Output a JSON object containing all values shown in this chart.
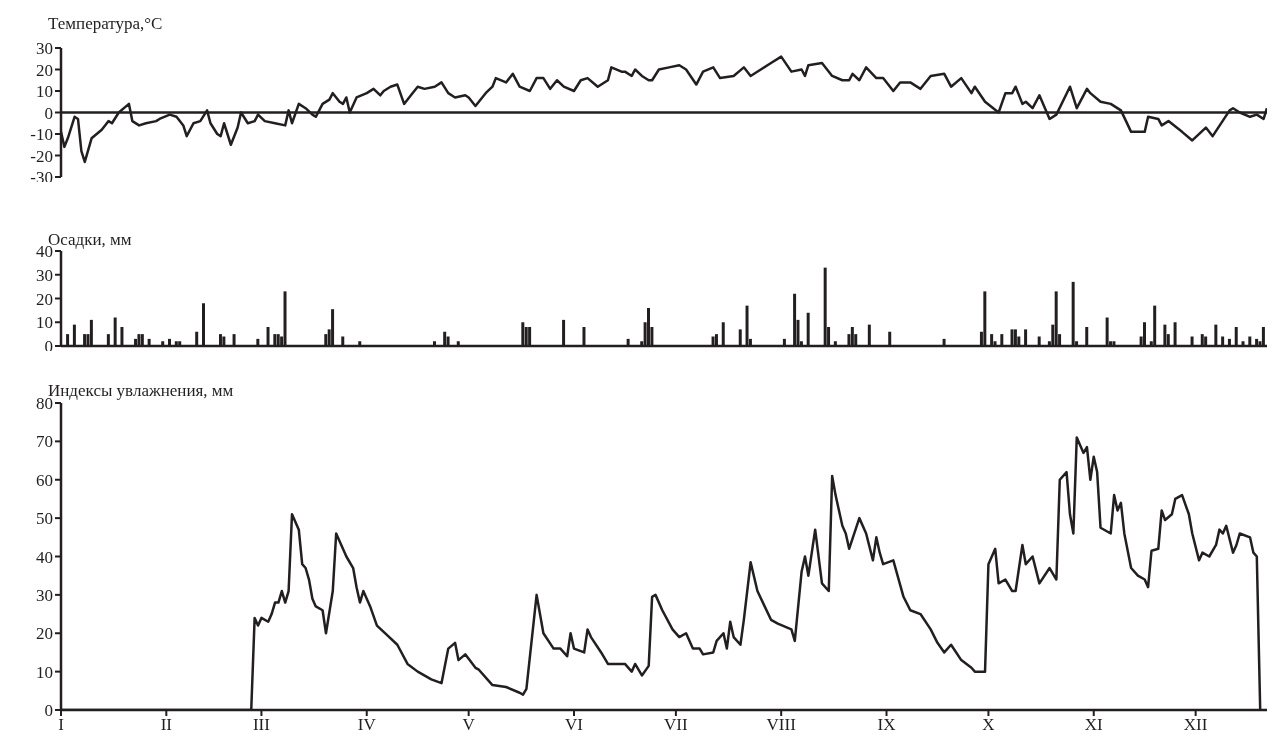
{
  "chart_data": [
    {
      "type": "line",
      "ylabel": "Температура,°C",
      "color": "#231f20",
      "ylim": [
        -30,
        30
      ],
      "yticks": [
        -30,
        -20,
        -10,
        0,
        10,
        20,
        30
      ],
      "tick_labels": "y",
      "categories": [
        null,
        null,
        null,
        null,
        null,
        null,
        null,
        null,
        null,
        null,
        null,
        null,
        null,
        null,
        null,
        null,
        null,
        null,
        null,
        null,
        null,
        null,
        null,
        null,
        null,
        null,
        null,
        null,
        null,
        null,
        null,
        null,
        null,
        null,
        null,
        null,
        null,
        null,
        null,
        null,
        null,
        null,
        null,
        null,
        null,
        null,
        null,
        null,
        null,
        null,
        null,
        null,
        null,
        null,
        null,
        null,
        null,
        null,
        null,
        null,
        null,
        null,
        null,
        null,
        null,
        null,
        null,
        null,
        null,
        null,
        null,
        null,
        null,
        null,
        null,
        null,
        null,
        null,
        null,
        null,
        null,
        null,
        null,
        null,
        null,
        null,
        null,
        null,
        null,
        null,
        null,
        null,
        null,
        null,
        null,
        null,
        null,
        null,
        null,
        null,
        null,
        null,
        null,
        null,
        null,
        null,
        null,
        null,
        null,
        null,
        null,
        null,
        null,
        null,
        null,
        null,
        null,
        null,
        null,
        null,
        null,
        null,
        null,
        null,
        null,
        null,
        null,
        null,
        null,
        null,
        null,
        null,
        null,
        null,
        null,
        null,
        null,
        null,
        null,
        null,
        null,
        null,
        null,
        null,
        null,
        null,
        null,
        null,
        null,
        null,
        null,
        null,
        null,
        null,
        null,
        null,
        null,
        null,
        null,
        null,
        null,
        null,
        null,
        null,
        null,
        null,
        null,
        null,
        null,
        null,
        null,
        null,
        null,
        null,
        null,
        null,
        null,
        null,
        null,
        null,
        null,
        null,
        null,
        null,
        null,
        null,
        null,
        null,
        null,
        null,
        null,
        null,
        null,
        null,
        null,
        null,
        null,
        null,
        null,
        null,
        null,
        null,
        null,
        null,
        null,
        null,
        null,
        null,
        null,
        null,
        null,
        null,
        null,
        null,
        null,
        null,
        null,
        null,
        null,
        null,
        null,
        null,
        null,
        null,
        null,
        null,
        null,
        null,
        null,
        null,
        null,
        null,
        null,
        null,
        null,
        null,
        null,
        null,
        null,
        null,
        null,
        null,
        null,
        null,
        null,
        null,
        null,
        null,
        null,
        null,
        null,
        null,
        null,
        null,
        null,
        null,
        null,
        null,
        null,
        null,
        null,
        null,
        null,
        null,
        null,
        null,
        null,
        null,
        null,
        null,
        null,
        null,
        null,
        null,
        null,
        null,
        null,
        null,
        null,
        null,
        null,
        null,
        null,
        null,
        null,
        null,
        null,
        null,
        null,
        null,
        null,
        null,
        null,
        null,
        null,
        null,
        null,
        null,
        null,
        null,
        null,
        null,
        null,
        null,
        null,
        null,
        null,
        null,
        null,
        null,
        null,
        null,
        null,
        null,
        null,
        null,
        null,
        null,
        null,
        null,
        null,
        null,
        null,
        null,
        null,
        null,
        null,
        null,
        null,
        null,
        null,
        null,
        null,
        null,
        null,
        null,
        null,
        null,
        null,
        null,
        null,
        null,
        null,
        null,
        null,
        null,
        null,
        null,
        null,
        null,
        null,
        null,
        null,
        null,
        null,
        null
      ],
      "values": [
        -9,
        -16,
        -12,
        null,
        -2,
        -3,
        -18,
        -23,
        null,
        -12,
        null,
        null,
        -8,
        null,
        -4,
        -5,
        null,
        0,
        null,
        null,
        4,
        -4,
        null,
        -6,
        null,
        -5,
        null,
        null,
        -4,
        -3,
        null,
        null,
        -1,
        null,
        -2,
        null,
        -6,
        -11,
        null,
        -5,
        null,
        -4,
        null,
        1,
        -5,
        null,
        -10,
        -11,
        -5,
        null,
        -15,
        null,
        -7,
        0,
        null,
        -5,
        null,
        -4,
        -1,
        null,
        -4,
        null,
        null,
        -5,
        null,
        null,
        -6,
        1,
        -5,
        null,
        4,
        null,
        2,
        null,
        -1,
        -2,
        null,
        4,
        null,
        6,
        9,
        null,
        5,
        4,
        7,
        0,
        null,
        7,
        null,
        null,
        9,
        null,
        11,
        null,
        8,
        10,
        null,
        12,
        null,
        13,
        null,
        4,
        null,
        8,
        null,
        12,
        null,
        11,
        null,
        null,
        12,
        null,
        14,
        null,
        9,
        null,
        7,
        null,
        null,
        8,
        7,
        null,
        3,
        5,
        null,
        9,
        null,
        12,
        16,
        null,
        null,
        14,
        null,
        18,
        null,
        12,
        null,
        null,
        10,
        null,
        16,
        null,
        16,
        null,
        11,
        null,
        15,
        null,
        12,
        null,
        null,
        10,
        null,
        15,
        null,
        16,
        null,
        null,
        12,
        null,
        null,
        15,
        21,
        null,
        null,
        19,
        19,
        null,
        17,
        20,
        null,
        17,
        null,
        15,
        15,
        null,
        20,
        null,
        null,
        21,
        null,
        null,
        22,
        null,
        20,
        null,
        null,
        13,
        null,
        19,
        null,
        null,
        21,
        null,
        16,
        null,
        null,
        null,
        17,
        null,
        null,
        21,
        null,
        17,
        null,
        null,
        20,
        null,
        null,
        23,
        null,
        null,
        26,
        null,
        null,
        19,
        null,
        null,
        20,
        17,
        22,
        null,
        null,
        null,
        23,
        null,
        null,
        17,
        null,
        null,
        15,
        null,
        15,
        18,
        null,
        15,
        null,
        21,
        null,
        null,
        16,
        null,
        16,
        null,
        null,
        10,
        null,
        14,
        null,
        null,
        14,
        null,
        null,
        11,
        null,
        null,
        17,
        null,
        null,
        null,
        18,
        null,
        12,
        null,
        null,
        16,
        null,
        null,
        9,
        12,
        null,
        null,
        5,
        null,
        null,
        null,
        0,
        null,
        9,
        null,
        9,
        12,
        null,
        4,
        5,
        null,
        2,
        null,
        8,
        null,
        null,
        -3,
        null,
        -1,
        null,
        null,
        null,
        12,
        null,
        2,
        null,
        null,
        11,
        9,
        null,
        null,
        5,
        null,
        null,
        4,
        null,
        null,
        1,
        null,
        null,
        -9,
        null,
        -9,
        null,
        -9,
        -2,
        null,
        null,
        -3,
        -6,
        null,
        -4,
        null,
        null,
        null,
        -9,
        null,
        null,
        -13,
        null,
        null,
        null,
        -7,
        null,
        -11,
        null,
        null,
        null,
        null,
        1,
        2,
        null,
        0,
        null,
        null,
        -2,
        null,
        -1,
        null,
        -3,
        2
      ]
    },
    {
      "type": "bar",
      "ylabel": "Осадки, мм",
      "color": "#231f20",
      "ylim": [
        0,
        40
      ],
      "yticks": [
        0,
        10,
        20,
        30,
        40
      ],
      "tick_labels": "y",
      "categories": [
        null,
        null,
        null,
        null,
        null,
        null,
        null,
        null,
        null,
        null,
        null,
        null,
        null,
        null,
        null,
        null,
        null,
        null,
        null,
        null,
        null,
        null,
        null,
        null,
        null,
        null,
        null,
        null,
        null,
        null,
        null,
        null,
        null,
        null,
        null,
        null,
        null,
        null,
        null,
        null,
        null,
        null,
        null,
        null,
        null,
        null,
        null,
        null,
        null,
        null,
        null,
        null,
        null,
        null,
        null,
        null,
        null,
        null,
        null,
        null,
        null,
        null,
        null,
        null,
        null,
        null,
        null,
        null,
        null,
        null,
        null,
        null,
        null,
        null,
        null,
        null,
        null,
        null,
        null,
        null,
        null,
        null,
        null,
        null,
        null,
        null,
        null,
        null,
        null,
        null,
        null,
        null,
        null,
        null,
        null,
        null,
        null,
        null,
        null,
        null,
        null,
        null,
        null,
        null,
        null,
        null,
        null,
        null,
        null,
        null,
        null,
        null,
        null,
        null,
        null,
        null,
        null,
        null,
        null,
        null,
        null,
        null,
        null,
        null,
        null,
        null,
        null,
        null,
        null,
        null,
        null,
        null,
        null,
        null,
        null,
        null,
        null,
        null,
        null,
        null,
        null,
        null,
        null,
        null,
        null,
        null,
        null,
        null,
        null,
        null,
        null,
        null,
        null,
        null,
        null,
        null,
        null,
        null,
        null,
        null,
        null,
        null,
        null,
        null,
        null,
        null,
        null,
        null,
        null,
        null,
        null,
        null,
        null,
        null,
        null,
        null,
        null,
        null,
        null,
        null,
        null,
        null,
        null,
        null,
        null,
        null,
        null,
        null,
        null,
        null,
        null,
        null,
        null,
        null,
        null,
        null,
        null,
        null,
        null,
        null,
        null,
        null,
        null,
        null,
        null,
        null,
        null,
        null,
        null,
        null,
        null,
        null,
        null,
        null,
        null,
        null,
        null,
        null,
        null,
        null,
        null,
        null,
        null,
        null,
        null,
        null,
        null,
        null,
        null,
        null,
        null,
        null,
        null,
        null,
        null,
        null,
        null,
        null,
        null,
        null,
        null,
        null,
        null,
        null,
        null,
        null,
        null,
        null,
        null,
        null,
        null,
        null,
        null,
        null,
        null,
        null,
        null,
        null,
        null,
        null,
        null,
        null,
        null,
        null,
        null,
        null,
        null,
        null,
        null,
        null,
        null,
        null,
        null,
        null,
        null,
        null,
        null,
        null,
        null,
        null,
        null,
        null,
        null,
        null,
        null,
        null,
        null,
        null,
        null,
        null,
        null,
        null,
        null,
        null,
        null,
        null,
        null,
        null,
        null,
        null,
        null,
        null,
        null,
        null,
        null,
        null,
        null,
        null,
        null,
        null,
        null,
        null,
        null,
        null,
        null,
        null,
        null,
        null,
        null,
        null,
        null,
        null,
        null,
        null,
        null,
        null,
        null,
        null,
        null,
        null,
        null,
        null,
        null,
        null,
        null,
        null,
        null,
        null,
        null,
        null,
        null,
        null,
        null,
        null,
        null,
        null,
        null,
        null,
        null,
        null,
        null,
        null,
        null,
        null,
        null,
        null
      ],
      "values": [
        null,
        null,
        5,
        null,
        9,
        null,
        null,
        5,
        5,
        11,
        null,
        null,
        null,
        null,
        5,
        null,
        12,
        null,
        8,
        null,
        null,
        null,
        3,
        5,
        5,
        null,
        3,
        null,
        null,
        null,
        2,
        null,
        3,
        null,
        2,
        2,
        null,
        null,
        null,
        null,
        6,
        null,
        18,
        null,
        null,
        null,
        null,
        5,
        4,
        null,
        null,
        5,
        null,
        null,
        null,
        null,
        null,
        null,
        3,
        null,
        null,
        8,
        null,
        5,
        5,
        4,
        23,
        null,
        null,
        null,
        null,
        null,
        null,
        null,
        null,
        null,
        null,
        null,
        5,
        7,
        15.5,
        null,
        null,
        4,
        null,
        null,
        null,
        null,
        2,
        null,
        null,
        null,
        null,
        null,
        null,
        null,
        null,
        null,
        null,
        null,
        null,
        null,
        null,
        null,
        null,
        null,
        null,
        null,
        null,
        null,
        2,
        null,
        null,
        6,
        4,
        null,
        null,
        2,
        null,
        null,
        null,
        null,
        null,
        null,
        null,
        null,
        null,
        null,
        null,
        null,
        null,
        null,
        null,
        null,
        null,
        null,
        10,
        8,
        8,
        null,
        null,
        null,
        null,
        null,
        null,
        null,
        null,
        null,
        11,
        null,
        null,
        null,
        null,
        null,
        8,
        null,
        null,
        null,
        null,
        null,
        null,
        null,
        null,
        null,
        null,
        null,
        null,
        3,
        null,
        null,
        null,
        2,
        10,
        16,
        8,
        null,
        null,
        null,
        null,
        null,
        null,
        null,
        null,
        null,
        null,
        null,
        null,
        null,
        null,
        null,
        null,
        null,
        4,
        5,
        null,
        10,
        null,
        null,
        null,
        null,
        7,
        null,
        17,
        3,
        null,
        null,
        null,
        null,
        null,
        null,
        null,
        null,
        null,
        3,
        null,
        null,
        22,
        11,
        2,
        null,
        14,
        null,
        null,
        null,
        null,
        33,
        8,
        null,
        2,
        null,
        null,
        null,
        5,
        8,
        5,
        null,
        null,
        null,
        9,
        null,
        null,
        null,
        null,
        null,
        6,
        null,
        null,
        null,
        null,
        null,
        null,
        null,
        null,
        null,
        null,
        null,
        null,
        null,
        null,
        null,
        3,
        null,
        null,
        null,
        null,
        null,
        null,
        null,
        null,
        null,
        null,
        6,
        23,
        null,
        5,
        2,
        null,
        5,
        null,
        null,
        7,
        7,
        4,
        null,
        7,
        null,
        null,
        null,
        4,
        null,
        null,
        2,
        9,
        23,
        5,
        null,
        null,
        null,
        27,
        2,
        null,
        null,
        8,
        null,
        null,
        null,
        null,
        null,
        12,
        2,
        2,
        null,
        null,
        null,
        null,
        null,
        null,
        null,
        4,
        10,
        null,
        2,
        17,
        null,
        null,
        9,
        5,
        null,
        10,
        null,
        null,
        null,
        null,
        4,
        null,
        null,
        5,
        4,
        null,
        null,
        9,
        null,
        4,
        null,
        3,
        null,
        8,
        null,
        2,
        null,
        4,
        null,
        3,
        2,
        8,
        null
      ]
    },
    {
      "type": "line",
      "ylabel": "Индексы увлажнения, мм",
      "color": "#231f20",
      "ylim": [
        0,
        80
      ],
      "yticks": [
        0,
        10,
        20,
        30,
        40,
        50,
        60,
        70,
        80
      ],
      "categories": [
        "I",
        null,
        null,
        null,
        null,
        null,
        null,
        null,
        null,
        null,
        null,
        null,
        null,
        null,
        null,
        null,
        null,
        null,
        null,
        null,
        null,
        null,
        null,
        null,
        null,
        null,
        null,
        null,
        null,
        null,
        null,
        "II",
        null,
        null,
        null,
        null,
        null,
        null,
        null,
        null,
        null,
        null,
        null,
        null,
        null,
        null,
        null,
        null,
        null,
        null,
        null,
        null,
        null,
        null,
        null,
        null,
        null,
        null,
        null,
        "III",
        null,
        null,
        null,
        null,
        null,
        null,
        null,
        null,
        null,
        null,
        null,
        null,
        null,
        null,
        null,
        null,
        null,
        null,
        null,
        null,
        null,
        null,
        null,
        null,
        null,
        null,
        null,
        null,
        null,
        null,
        "IV",
        null,
        null,
        null,
        null,
        null,
        null,
        null,
        null,
        null,
        null,
        null,
        null,
        null,
        null,
        null,
        null,
        null,
        null,
        null,
        null,
        null,
        null,
        null,
        null,
        null,
        null,
        null,
        null,
        null,
        "V",
        null,
        null,
        null,
        null,
        null,
        null,
        null,
        null,
        null,
        null,
        null,
        null,
        null,
        null,
        null,
        null,
        null,
        null,
        null,
        null,
        null,
        null,
        null,
        null,
        null,
        null,
        null,
        null,
        null,
        null,
        "VI",
        null,
        null,
        null,
        null,
        null,
        null,
        null,
        null,
        null,
        null,
        null,
        null,
        null,
        null,
        null,
        null,
        null,
        null,
        null,
        null,
        null,
        null,
        null,
        null,
        null,
        null,
        null,
        null,
        null,
        "VII",
        null,
        null,
        null,
        null,
        null,
        null,
        null,
        null,
        null,
        null,
        null,
        null,
        null,
        null,
        null,
        null,
        null,
        null,
        null,
        null,
        null,
        null,
        null,
        null,
        null,
        null,
        null,
        null,
        null,
        null,
        "VIII",
        null,
        null,
        null,
        null,
        null,
        null,
        null,
        null,
        null,
        null,
        null,
        null,
        null,
        null,
        null,
        null,
        null,
        null,
        null,
        null,
        null,
        null,
        null,
        null,
        null,
        null,
        null,
        null,
        null,
        null,
        "IX",
        null,
        null,
        null,
        null,
        null,
        null,
        null,
        null,
        null,
        null,
        null,
        null,
        null,
        null,
        null,
        null,
        null,
        null,
        null,
        null,
        null,
        null,
        null,
        null,
        null,
        null,
        null,
        null,
        null,
        "X",
        null,
        null,
        null,
        null,
        null,
        null,
        null,
        null,
        null,
        null,
        null,
        null,
        null,
        null,
        null,
        null,
        null,
        null,
        null,
        null,
        null,
        null,
        null,
        null,
        null,
        null,
        null,
        null,
        null,
        null,
        "XI",
        null,
        null,
        null,
        null,
        null,
        null,
        null,
        null,
        null,
        null,
        null,
        null,
        null,
        null,
        null,
        null,
        null,
        null,
        null,
        null,
        null,
        null,
        null,
        null,
        null,
        null,
        null,
        null,
        null,
        "XII",
        null,
        null,
        null,
        null,
        null,
        null,
        null,
        null,
        null,
        null,
        null,
        null,
        null,
        null,
        null,
        null,
        null,
        null,
        null,
        null,
        null
      ],
      "values": [
        0,
        null,
        null,
        null,
        null,
        null,
        null,
        null,
        null,
        null,
        null,
        null,
        null,
        null,
        null,
        null,
        null,
        null,
        null,
        null,
        null,
        null,
        null,
        null,
        null,
        null,
        null,
        null,
        null,
        null,
        null,
        null,
        null,
        null,
        null,
        null,
        null,
        null,
        null,
        null,
        null,
        null,
        null,
        null,
        null,
        null,
        null,
        null,
        null,
        null,
        null,
        null,
        null,
        null,
        null,
        null,
        0,
        24,
        22,
        24,
        null,
        23,
        25,
        28,
        28,
        31,
        28,
        31,
        51,
        null,
        47,
        38,
        37,
        34,
        29,
        27,
        null,
        26,
        20,
        null,
        31,
        46,
        null,
        null,
        40,
        null,
        37,
        32,
        28,
        31,
        null,
        27,
        null,
        22,
        null,
        null,
        19.5,
        null,
        null,
        17,
        null,
        null,
        12,
        null,
        null,
        10,
        null,
        null,
        null,
        8,
        null,
        null,
        7,
        null,
        16,
        null,
        17.5,
        13,
        null,
        14.5,
        null,
        null,
        11,
        10.5,
        null,
        null,
        null,
        6.5,
        null,
        null,
        null,
        6,
        null,
        null,
        null,
        4.5,
        4,
        5.5,
        null,
        null,
        30,
        null,
        20,
        null,
        null,
        16,
        null,
        16,
        null,
        14,
        20,
        16,
        null,
        null,
        15,
        21,
        19,
        null,
        null,
        15,
        null,
        12,
        null,
        null,
        null,
        null,
        12,
        null,
        10,
        12,
        null,
        9,
        null,
        11.5,
        29.5,
        30,
        null,
        26,
        null,
        null,
        21,
        null,
        19,
        null,
        20,
        null,
        16,
        null,
        16,
        14.5,
        null,
        null,
        15,
        18,
        null,
        20,
        16,
        23,
        19,
        null,
        17,
        23.5,
        null,
        38.5,
        null,
        31,
        null,
        null,
        null,
        23.5,
        null,
        22.5,
        null,
        null,
        null,
        21,
        18,
        null,
        36,
        40,
        35,
        null,
        47,
        null,
        33,
        null,
        31,
        61,
        56,
        null,
        48,
        46,
        42,
        null,
        null,
        50,
        null,
        46,
        null,
        39,
        45,
        41,
        38,
        null,
        null,
        39,
        null,
        null,
        29.5,
        null,
        26,
        null,
        null,
        25,
        null,
        null,
        21,
        null,
        17.5,
        null,
        15,
        null,
        17,
        null,
        null,
        13,
        null,
        null,
        11,
        10,
        null,
        null,
        10,
        38,
        null,
        42,
        33,
        null,
        34,
        null,
        31,
        31,
        null,
        43,
        38,
        null,
        40,
        null,
        33,
        null,
        null,
        37,
        null,
        34,
        60,
        null,
        62,
        51,
        46,
        71,
        null,
        67,
        68.5,
        60,
        66,
        62,
        47.5,
        null,
        null,
        46,
        56,
        52,
        54,
        46,
        null,
        37,
        null,
        35,
        null,
        34,
        32,
        41.5,
        null,
        42,
        52,
        49.5,
        null,
        51,
        55,
        null,
        56,
        null,
        51,
        46,
        null,
        39,
        41,
        null,
        40,
        null,
        43,
        47,
        46,
        48,
        null,
        41,
        43,
        46,
        null,
        null,
        45,
        41,
        40,
        0,
        null,
        null
      ]
    }
  ]
}
